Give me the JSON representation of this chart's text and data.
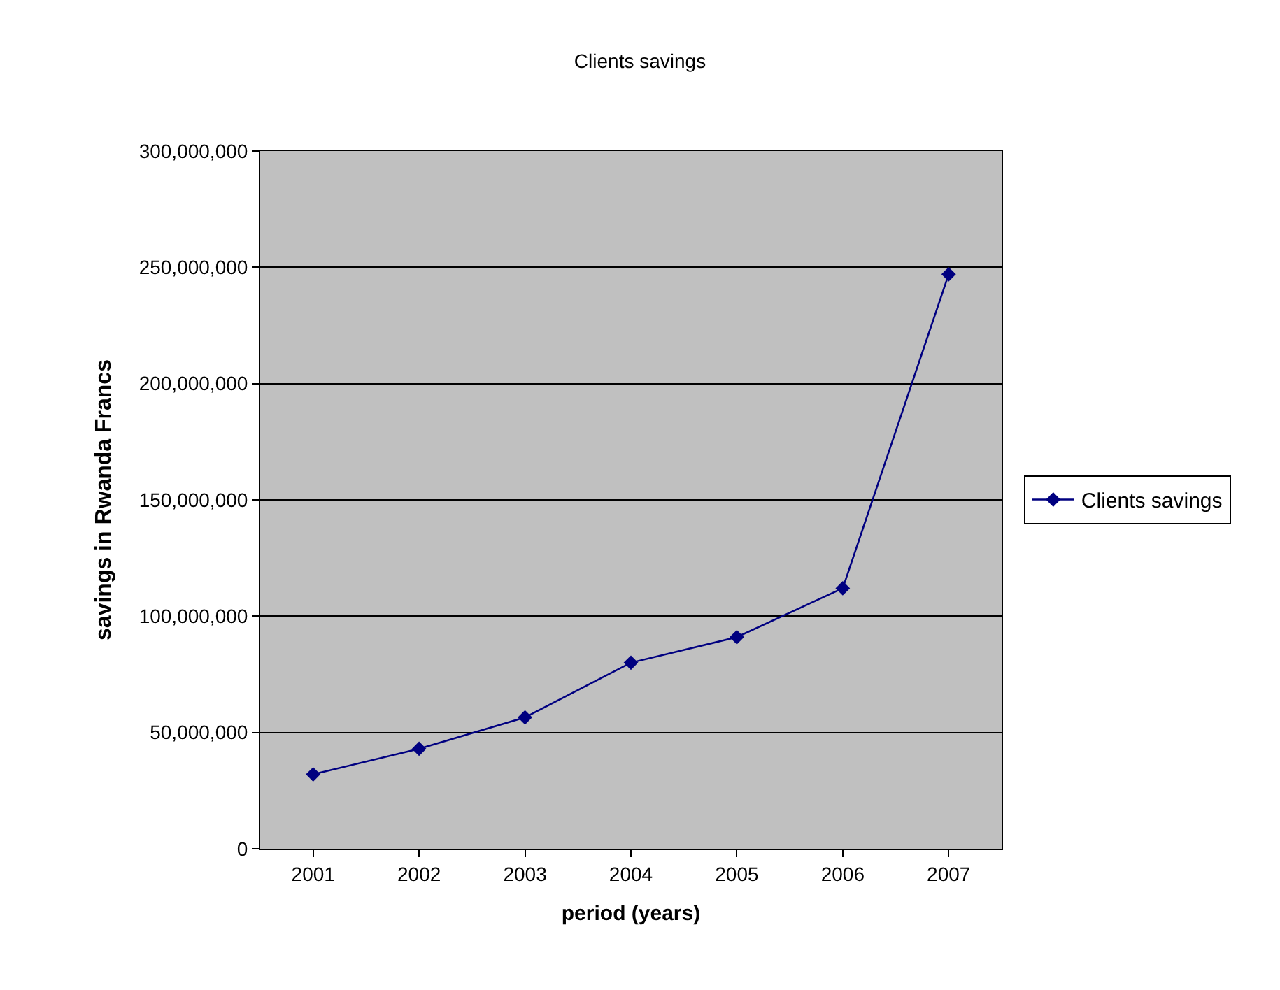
{
  "chart_data": {
    "type": "line",
    "title": "Clients savings",
    "xlabel": "period (years)",
    "ylabel": "savings in Rwanda Francs",
    "categories": [
      "2001",
      "2002",
      "2003",
      "2004",
      "2005",
      "2006",
      "2007"
    ],
    "series": [
      {
        "name": "Clients savings",
        "color": "#000080",
        "values": [
          32000000,
          43000000,
          56500000,
          80000000,
          91000000,
          112000000,
          247000000
        ]
      }
    ],
    "ylim": [
      0,
      300000000
    ],
    "yticks": [
      {
        "value": 0,
        "label": "0"
      },
      {
        "value": 50000000,
        "label": "50,000,000"
      },
      {
        "value": 100000000,
        "label": "100,000,000"
      },
      {
        "value": 150000000,
        "label": "150,000,000"
      },
      {
        "value": 200000000,
        "label": "200,000,000"
      },
      {
        "value": 250000000,
        "label": "250,000,000"
      },
      {
        "value": 300000000,
        "label": "300,000,000"
      }
    ],
    "grid": "y",
    "legend": "right",
    "marker": "diamond",
    "line_style": "solid"
  }
}
